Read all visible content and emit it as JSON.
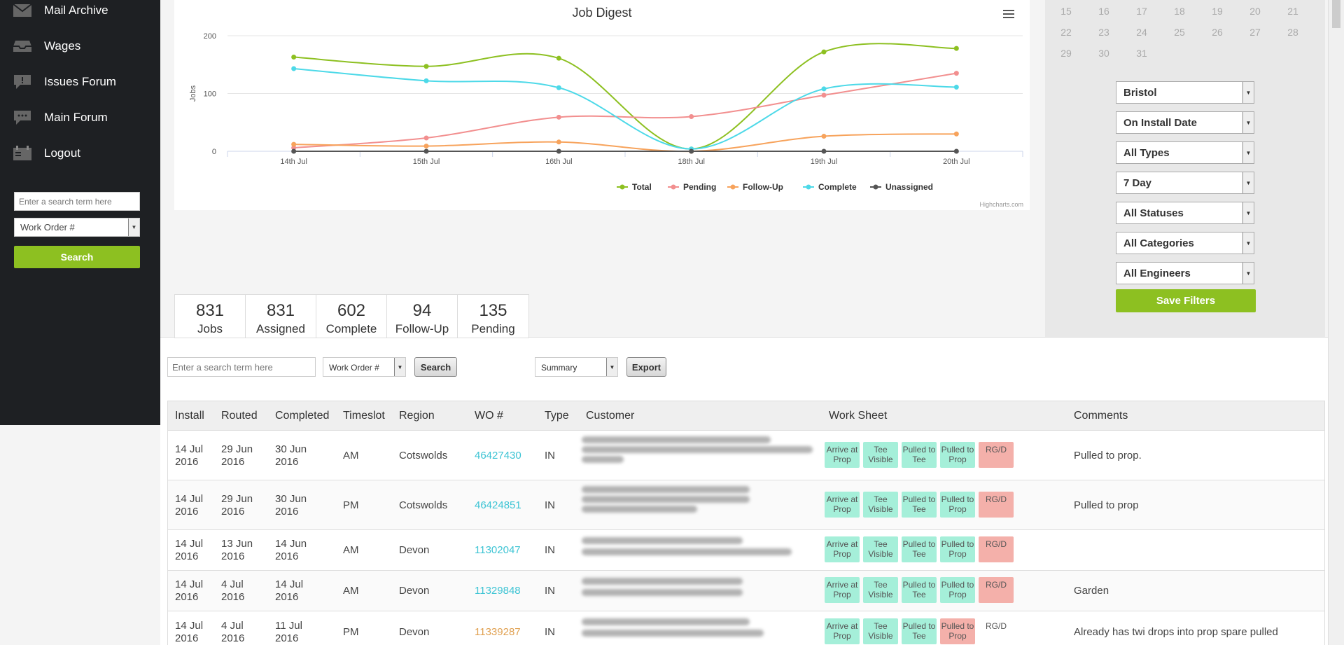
{
  "sidebar": {
    "items": [
      {
        "label": "Mail Archive",
        "icon": "mail-icon"
      },
      {
        "label": "Wages",
        "icon": "inbox-icon"
      },
      {
        "label": "Issues Forum",
        "icon": "exclamation-bubble-icon"
      },
      {
        "label": "Main Forum",
        "icon": "chat-bubble-icon"
      },
      {
        "label": "Logout",
        "icon": "calendar-icon"
      }
    ],
    "search_placeholder": "Enter a search term here",
    "search_field": "Work Order #",
    "search_button": "Search"
  },
  "chart_data": {
    "type": "line",
    "title": "Job Digest",
    "ylabel": "Jobs",
    "xlabel": "",
    "categories": [
      "14th Jul",
      "15th Jul",
      "16th Jul",
      "18th Jul",
      "19th Jul",
      "20th Jul"
    ],
    "ylim": [
      0,
      200
    ],
    "yticks": [
      0,
      100,
      200
    ],
    "series": [
      {
        "name": "Total",
        "color": "#8dc021",
        "values": [
          163,
          147,
          161,
          4,
          172,
          178
        ]
      },
      {
        "name": "Pending",
        "color": "#f28f8f",
        "values": [
          6,
          23,
          59,
          60,
          97,
          135
        ]
      },
      {
        "name": "Follow-Up",
        "color": "#f7a35c",
        "values": [
          12,
          9,
          16,
          0,
          26,
          30
        ]
      },
      {
        "name": "Complete",
        "color": "#4dd9e8",
        "values": [
          143,
          122,
          110,
          4,
          108,
          111
        ]
      },
      {
        "name": "Unassigned",
        "color": "#555555",
        "values": [
          0,
          0,
          0,
          0,
          0,
          0
        ]
      }
    ],
    "legend": "bottom",
    "credit": "Highcharts.com"
  },
  "calendar": {
    "rows": [
      [
        "15",
        "16",
        "17",
        "18",
        "19",
        "20",
        "21"
      ],
      [
        "22",
        "23",
        "24",
        "25",
        "26",
        "27",
        "28"
      ],
      [
        "29",
        "30",
        "31"
      ]
    ]
  },
  "filters": {
    "selects": [
      "Bristol",
      "On Install Date",
      "All Types",
      "7 Day",
      "All Statuses",
      "All Categories",
      "All Engineers"
    ],
    "save_button": "Save Filters"
  },
  "stats": [
    {
      "value": "831",
      "label": "Jobs"
    },
    {
      "value": "831",
      "label": "Assigned"
    },
    {
      "value": "602",
      "label": "Complete"
    },
    {
      "value": "94",
      "label": "Follow-Up"
    },
    {
      "value": "135",
      "label": "Pending"
    }
  ],
  "toolbar": {
    "search_placeholder": "Enter a search term here",
    "field_select": "Work Order #",
    "search_button": "Search",
    "view_select": "Summary",
    "export_button": "Export"
  },
  "table": {
    "headers": [
      "Install",
      "Routed",
      "Completed",
      "Timeslot",
      "Region",
      "WO #",
      "Type",
      "Customer",
      "Work Sheet",
      "Comments"
    ],
    "rows": [
      {
        "install": "14 Jul 2016",
        "routed": "29 Jun 2016",
        "completed": "30 Jun 2016",
        "timeslot": "AM",
        "region": "Cotswolds",
        "wo": "46427430",
        "wo_color": "teal",
        "type": "IN",
        "chips": [
          [
            "Arrive at Prop",
            "g"
          ],
          [
            "Tee Visible",
            "g"
          ],
          [
            "Pulled to Tee",
            "g"
          ],
          [
            "Pulled to Prop",
            "g"
          ],
          [
            "RG/D",
            "r"
          ]
        ],
        "comment": "Pulled to prop."
      },
      {
        "install": "14 Jul 2016",
        "routed": "29 Jun 2016",
        "completed": "30 Jun 2016",
        "timeslot": "PM",
        "region": "Cotswolds",
        "wo": "46424851",
        "wo_color": "teal",
        "type": "IN",
        "chips": [
          [
            "Arrive at Prop",
            "g"
          ],
          [
            "Tee Visible",
            "g"
          ],
          [
            "Pulled to Tee",
            "g"
          ],
          [
            "Pulled to Prop",
            "g"
          ],
          [
            "RG/D",
            "r"
          ]
        ],
        "comment": "Pulled to prop"
      },
      {
        "install": "14 Jul 2016",
        "routed": "13 Jun 2016",
        "completed": "14 Jun 2016",
        "timeslot": "AM",
        "region": "Devon",
        "wo": "11302047",
        "wo_color": "teal",
        "type": "IN",
        "chips": [
          [
            "Arrive at Prop",
            "g"
          ],
          [
            "Tee Visible",
            "g"
          ],
          [
            "Pulled to Tee",
            "g"
          ],
          [
            "Pulled to Prop",
            "g"
          ],
          [
            "RG/D",
            "r"
          ]
        ],
        "comment": ""
      },
      {
        "install": "14 Jul 2016",
        "routed": "4 Jul 2016",
        "completed": "14 Jul 2016",
        "timeslot": "AM",
        "region": "Devon",
        "wo": "11329848",
        "wo_color": "teal",
        "type": "IN",
        "chips": [
          [
            "Arrive at Prop",
            "g"
          ],
          [
            "Tee Visible",
            "g"
          ],
          [
            "Pulled to Tee",
            "g"
          ],
          [
            "Pulled to Prop",
            "g"
          ],
          [
            "RG/D",
            "r"
          ]
        ],
        "comment": "Garden"
      },
      {
        "install": "14 Jul 2016",
        "routed": "4 Jul 2016",
        "completed": "11 Jul 2016",
        "timeslot": "PM",
        "region": "Devon",
        "wo": "11339287",
        "wo_color": "orange",
        "type": "IN",
        "chips": [
          [
            "Arrive at Prop",
            "g"
          ],
          [
            "Tee Visible",
            "g"
          ],
          [
            "Pulled to Tee",
            "g"
          ],
          [
            "Pulled to Prop",
            "r"
          ],
          [
            "RG/D",
            "w"
          ]
        ],
        "comment": "Already has twi drops into prop spare pulled"
      }
    ]
  }
}
